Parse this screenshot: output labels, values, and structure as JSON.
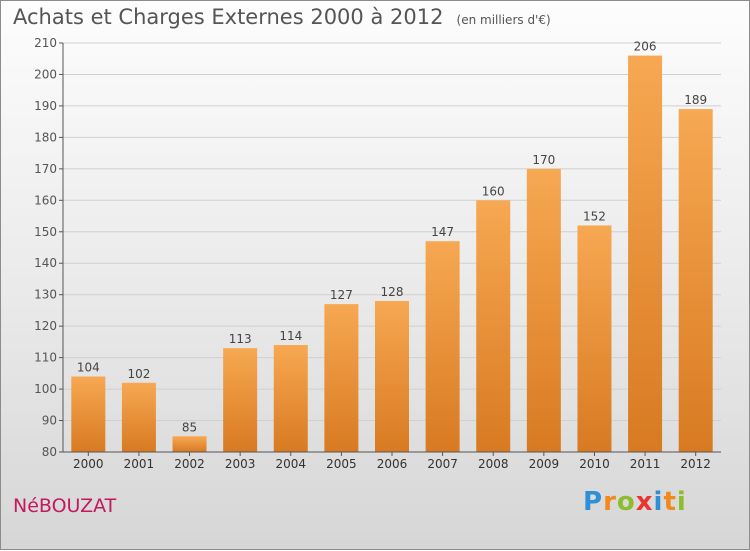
{
  "header": {
    "title": "Achats et Charges Externes 2000 à 2012",
    "subtitle": "(en milliers d'€)"
  },
  "footer": {
    "commune": "NéBOUZAT",
    "brand_letters": [
      {
        "ch": "P",
        "color": "#2e8fd6"
      },
      {
        "ch": "r",
        "color": "#f08a1c"
      },
      {
        "ch": "o",
        "color": "#8cbd2e"
      },
      {
        "ch": "x",
        "color": "#e8352e"
      },
      {
        "ch": "i",
        "color": "#2e8fd6"
      },
      {
        "ch": "t",
        "color": "#f08a1c"
      },
      {
        "ch": "i",
        "color": "#8cbd2e"
      }
    ]
  },
  "colors": {
    "bar_light": "#f7a852",
    "bar_dark": "#d87a22",
    "axis": "#555555",
    "grid": "#d0d0d0"
  },
  "chart_data": {
    "type": "bar",
    "title": "Achats et Charges Externes 2000 à 2012",
    "subtitle": "(en milliers d'€)",
    "categories": [
      "2000",
      "2001",
      "2002",
      "2003",
      "2004",
      "2005",
      "2006",
      "2007",
      "2008",
      "2009",
      "2010",
      "2011",
      "2012"
    ],
    "values": [
      104,
      102,
      85,
      113,
      114,
      127,
      128,
      147,
      160,
      170,
      152,
      206,
      189
    ],
    "ylim": [
      80,
      210
    ],
    "yticks": [
      80,
      90,
      100,
      110,
      120,
      130,
      140,
      150,
      160,
      170,
      180,
      190,
      200,
      210
    ],
    "grid": true,
    "data_labels": true
  }
}
